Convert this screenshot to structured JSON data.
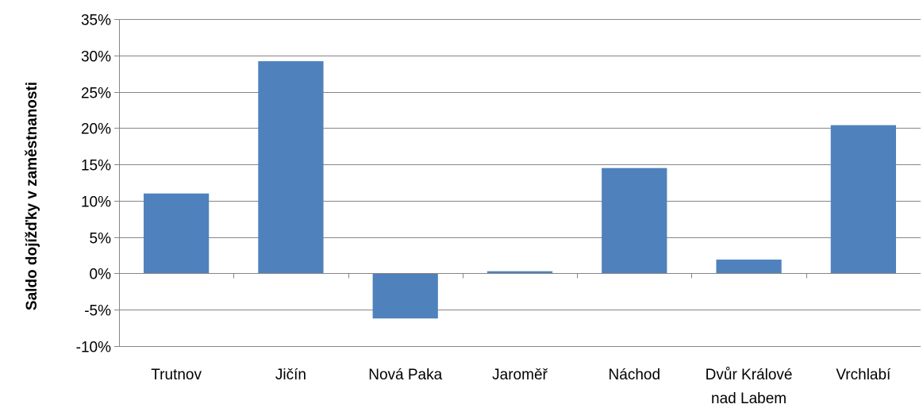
{
  "chart_data": {
    "type": "bar",
    "categories": [
      "Trutnov",
      "Jičín",
      "Nová Paka",
      "Jaroměř",
      "Náchod",
      "Dvůr Králové nad Labem",
      "Vrchlabí"
    ],
    "category_lines": [
      [
        "Trutnov"
      ],
      [
        "Jičín"
      ],
      [
        "Nová Paka"
      ],
      [
        "Jaroměř"
      ],
      [
        "Náchod"
      ],
      [
        "Dvůr Králové",
        "nad Labem"
      ],
      [
        "Vrchlabí"
      ]
    ],
    "values": [
      11.0,
      29.2,
      -6.2,
      0.3,
      14.5,
      1.9,
      20.4
    ],
    "ylabel": "Saldo dojížďky v zaměstnanosti",
    "xlabel": "",
    "ylim": [
      -10,
      35
    ],
    "yticks": [
      35,
      30,
      25,
      20,
      15,
      10,
      5,
      0,
      -5,
      -10
    ],
    "ytick_labels": [
      "35%",
      "30%",
      "25%",
      "20%",
      "15%",
      "10%",
      "5%",
      "0%",
      "-5%",
      "-10%"
    ],
    "grid": true,
    "bar_color": "#4F81BD",
    "grid_color": "#868686"
  }
}
